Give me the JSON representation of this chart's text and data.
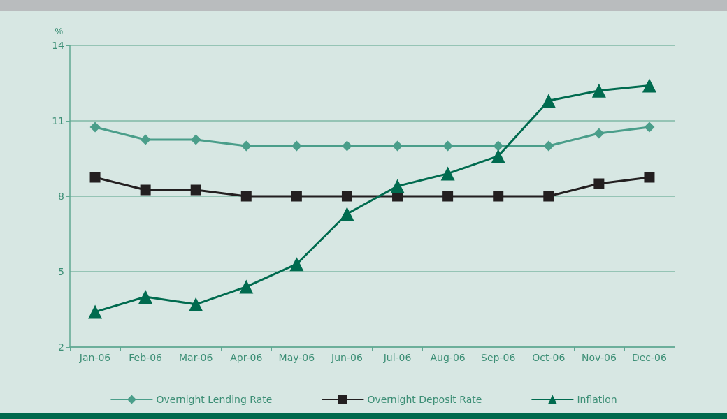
{
  "chart_data": {
    "type": "line",
    "ylabel": "%",
    "categories": [
      "Jan-06",
      "Feb-06",
      "Mar-06",
      "Apr-06",
      "May-06",
      "Jun-06",
      "Jul-06",
      "Aug-06",
      "Sep-06",
      "Oct-06",
      "Nov-06",
      "Dec-06"
    ],
    "series": [
      {
        "name": "Overnight Lending Rate",
        "color": "#4a9e8a",
        "marker": "diamond",
        "values": [
          10.75,
          10.25,
          10.25,
          10,
          10,
          10,
          10,
          10,
          10,
          10,
          10.5,
          10.75
        ]
      },
      {
        "name": "Overnight Deposit Rate",
        "color": "#231f20",
        "marker": "square",
        "values": [
          8.75,
          8.25,
          8.25,
          8,
          8,
          8,
          8,
          8,
          8,
          8,
          8.5,
          8.75
        ]
      },
      {
        "name": "Inflation",
        "color": "#006b4f",
        "marker": "triangle",
        "values": [
          3.4,
          4.0,
          3.7,
          4.4,
          5.3,
          7.3,
          8.4,
          8.9,
          9.6,
          11.8,
          12.2,
          12.4
        ]
      }
    ],
    "ylim": [
      2,
      14
    ],
    "yticks": [
      2,
      5,
      8,
      11,
      14
    ],
    "grid": "y",
    "legend": "bottom",
    "line_style": "solid"
  }
}
